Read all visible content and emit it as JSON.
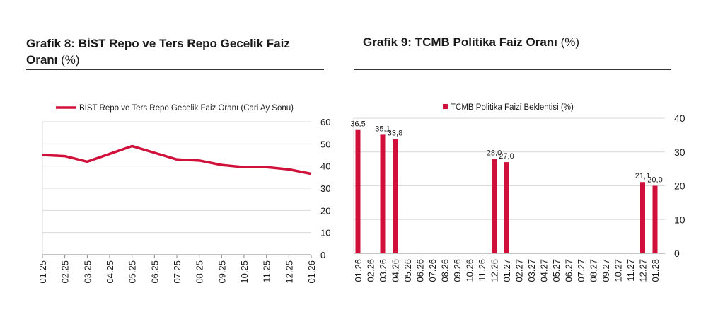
{
  "left_panel": {
    "title_bold": "Grafik 8:  BİST Repo ve Ters Repo Gecelik Faiz Oranı",
    "title_suffix": "(%)"
  },
  "right_panel": {
    "title_bold": "Grafik 9: TCMB Politika Faiz Oranı",
    "title_suffix": "(%)"
  },
  "colors": {
    "series": "#d0103a",
    "grid": "#d9d9d9",
    "axis": "#888888"
  },
  "chart_data": [
    {
      "type": "line",
      "title": "",
      "legend": "BİST Repo ve Ters Repo Gecelik Faiz Oranı (Cari Ay Sonu)",
      "legend_position": "top",
      "categories": [
        "01.25",
        "02.25",
        "03.25",
        "04.25",
        "05.25",
        "06.25",
        "07.25",
        "08.25",
        "09.25",
        "10.25",
        "11.25",
        "12.25",
        "01.26"
      ],
      "values": [
        45,
        44.5,
        42,
        45.5,
        49,
        46,
        43,
        42.5,
        40.5,
        39.5,
        39.5,
        38.5,
        36.5
      ],
      "yticks": [
        "0",
        "10",
        "20",
        "30",
        "40",
        "50",
        "60"
      ],
      "ylim": [
        0,
        60
      ],
      "y_axis_side": "right",
      "grid": true
    },
    {
      "type": "bar",
      "title": "",
      "legend": "TCMB Politika Faizi Beklentisi (%)",
      "legend_position": "top",
      "categories": [
        "01.26",
        "02.26",
        "03.26",
        "04.26",
        "05.26",
        "06.26",
        "07.26",
        "08.26",
        "09.26",
        "10.26",
        "11.26",
        "12.26",
        "01.27",
        "02.27",
        "03.27",
        "04.27",
        "05.27",
        "06.27",
        "07.27",
        "08.27",
        "09.27",
        "10.27",
        "11.27",
        "12.27",
        "01.28"
      ],
      "values": [
        36.5,
        null,
        35.1,
        33.8,
        null,
        null,
        null,
        null,
        null,
        null,
        null,
        28.0,
        27.0,
        null,
        null,
        null,
        null,
        null,
        null,
        null,
        null,
        null,
        null,
        21.1,
        20.0
      ],
      "labels": [
        "36,5",
        "",
        "35,1",
        "33,8",
        "",
        "",
        "",
        "",
        "",
        "",
        "",
        "28,0",
        "27,0",
        "",
        "",
        "",
        "",
        "",
        "",
        "",
        "",
        "",
        "",
        "21,1",
        "20,0"
      ],
      "yticks": [
        "0",
        "10",
        "20",
        "30",
        "40"
      ],
      "ylim": [
        0,
        40
      ],
      "y_axis_side": "right",
      "grid": true
    }
  ]
}
